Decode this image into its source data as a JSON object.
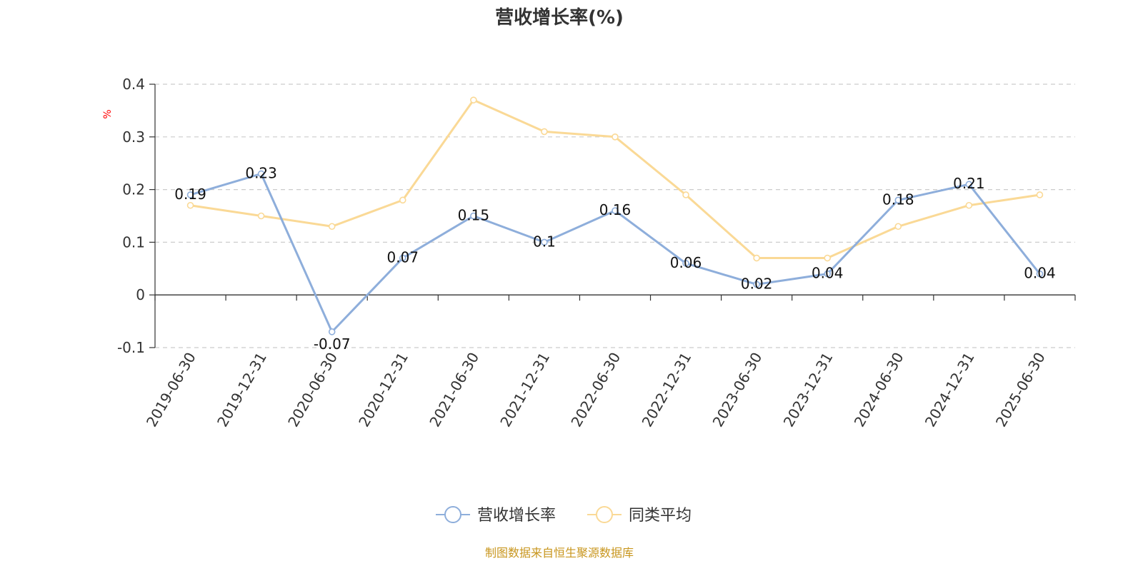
{
  "chart_data": {
    "type": "line",
    "title": "营收增长率(%)",
    "ylabel": "%",
    "xlabel": "",
    "categories": [
      "2019-06-30",
      "2019-12-31",
      "2020-06-30",
      "2020-12-31",
      "2021-06-30",
      "2021-12-31",
      "2022-06-30",
      "2022-12-31",
      "2023-06-30",
      "2023-12-31",
      "2024-06-30",
      "2024-12-31",
      "2025-06-30"
    ],
    "series": [
      {
        "name": "营收增长率",
        "color": "#8eaedb",
        "show_labels": true,
        "values": [
          0.19,
          0.23,
          -0.07,
          0.07,
          0.15,
          0.1,
          0.16,
          0.06,
          0.02,
          0.04,
          0.18,
          0.21,
          0.04
        ]
      },
      {
        "name": "同类平均",
        "color": "#fad996",
        "show_labels": false,
        "values": [
          0.17,
          0.15,
          0.13,
          0.18,
          0.37,
          0.31,
          0.3,
          0.19,
          0.07,
          0.07,
          0.13,
          0.17,
          0.19
        ]
      }
    ],
    "ylim": [
      -0.1,
      0.4
    ],
    "yticks": [
      "-0.1",
      "0",
      "0.1",
      "0.2",
      "0.3",
      "0.4"
    ],
    "grid": true,
    "legend_position": "bottom",
    "source_note": "制图数据来自恒生聚源数据库",
    "colors": {
      "title": "#333333",
      "axis": "#333333",
      "grid": "#cccccc",
      "ylabel": "#ff0000",
      "source": "#c8961e"
    }
  }
}
